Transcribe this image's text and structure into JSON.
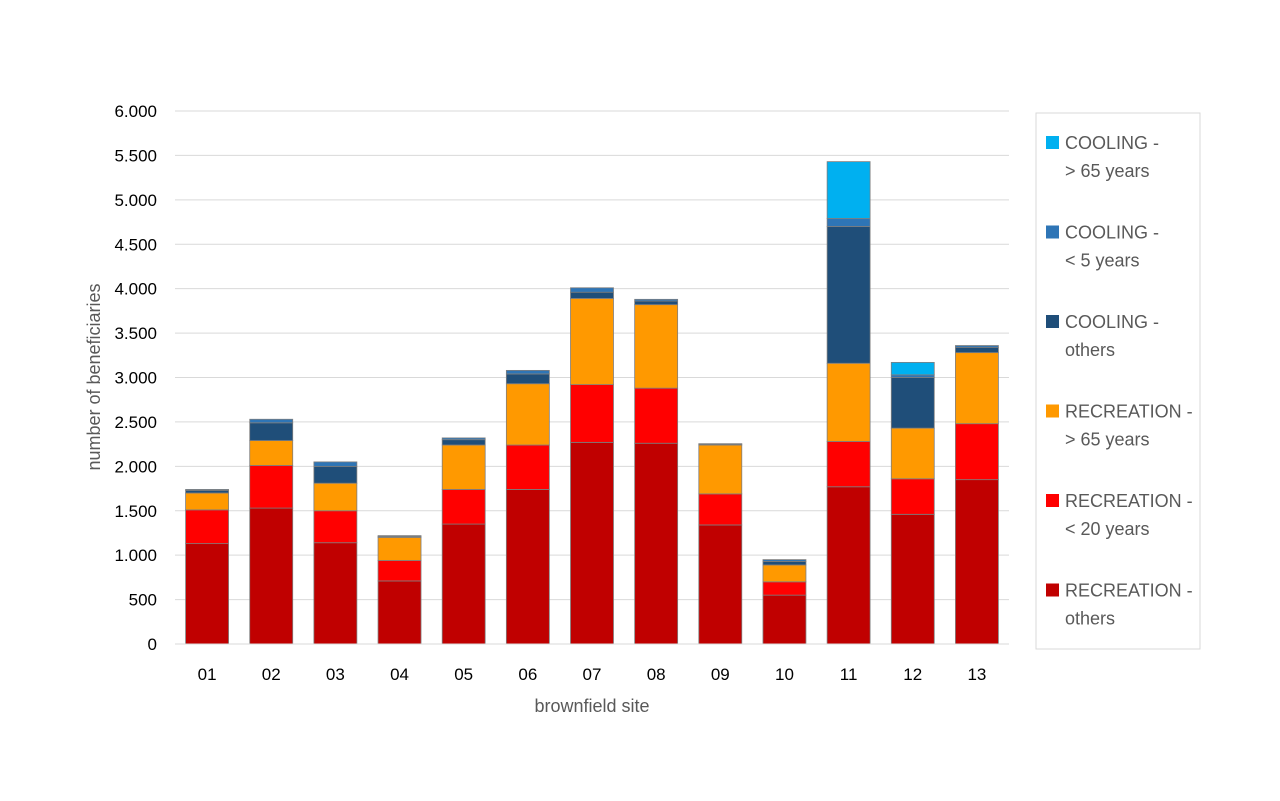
{
  "chart_data": {
    "type": "bar",
    "stacked": true,
    "xlabel": "brownfield site",
    "ylabel": "number of beneficiaries",
    "ylim": [
      0,
      6000
    ],
    "yticks": [
      0,
      500,
      1000,
      1500,
      2000,
      2500,
      3000,
      3500,
      4000,
      4500,
      5000,
      5500,
      6000
    ],
    "ytick_labels": [
      "0",
      "500",
      "1.000",
      "1.500",
      "2.000",
      "2.500",
      "3.000",
      "3.500",
      "4.000",
      "4.500",
      "5.000",
      "5.500",
      "6.000"
    ],
    "grid": true,
    "legend_position": "right",
    "categories": [
      "01",
      "02",
      "03",
      "04",
      "05",
      "06",
      "07",
      "08",
      "09",
      "10",
      "11",
      "12",
      "13"
    ],
    "series": [
      {
        "name": "RECREATION - others",
        "legend_lines": [
          "RECREATION -",
          "others"
        ],
        "color": "#C00000",
        "values": [
          1130,
          1530,
          1140,
          710,
          1350,
          1740,
          2270,
          2260,
          1340,
          550,
          1770,
          1460,
          1850
        ]
      },
      {
        "name": "RECREATION - < 20 years",
        "legend_lines": [
          "RECREATION -",
          "< 20 years"
        ],
        "color": "#FF0000",
        "values": [
          380,
          480,
          360,
          230,
          390,
          500,
          650,
          620,
          350,
          150,
          510,
          400,
          630
        ]
      },
      {
        "name": "RECREATION - > 65 years",
        "legend_lines": [
          "RECREATION -",
          "> 65 years"
        ],
        "color": "#FF9900",
        "values": [
          190,
          280,
          310,
          260,
          500,
          690,
          970,
          940,
          550,
          190,
          880,
          570,
          800
        ]
      },
      {
        "name": "COOLING - others",
        "legend_lines": [
          "COOLING -",
          "others"
        ],
        "color": "#1F4E79",
        "values": [
          30,
          200,
          190,
          10,
          60,
          110,
          70,
          40,
          10,
          40,
          1540,
          570,
          60
        ]
      },
      {
        "name": "COOLING - < 5 years",
        "legend_lines": [
          "COOLING -",
          "< 5 years"
        ],
        "color": "#2E75B6",
        "values": [
          10,
          40,
          50,
          10,
          20,
          40,
          50,
          20,
          5,
          20,
          90,
          30,
          20
        ]
      },
      {
        "name": "COOLING - > 65 years",
        "legend_lines": [
          "COOLING -",
          "> 65 years"
        ],
        "color": "#00B0F0",
        "values": [
          0,
          0,
          0,
          0,
          0,
          0,
          0,
          0,
          0,
          0,
          640,
          140,
          0
        ]
      }
    ]
  }
}
